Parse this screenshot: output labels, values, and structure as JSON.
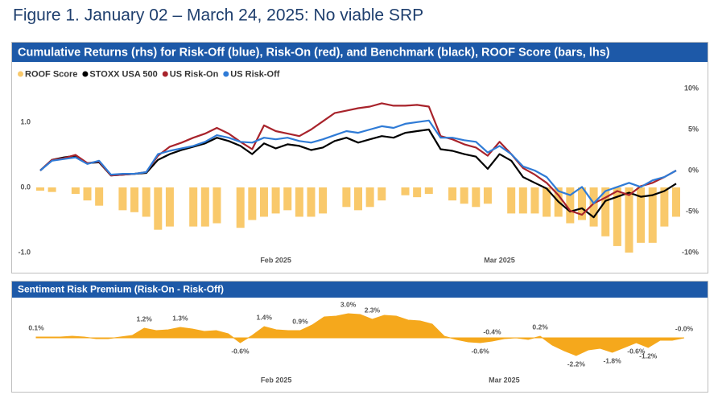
{
  "figure_title": "Figure 1. January 02 – March 24, 2025: No viable SRP",
  "chart_data": [
    {
      "type": "combo",
      "title": "Cumulative Returns (rhs) for Risk-Off (blue), Risk-On (red), and Benchmark (black), ROOF Score (bars, lhs)",
      "categories": [
        null,
        null,
        null,
        null,
        null,
        null,
        null,
        null,
        null,
        null,
        null,
        null,
        null,
        null,
        null,
        null,
        null,
        null,
        null,
        null,
        "Feb 2025",
        null,
        null,
        null,
        null,
        null,
        null,
        null,
        null,
        null,
        null,
        null,
        null,
        null,
        null,
        null,
        null,
        null,
        null,
        "Mar 2025",
        null,
        null,
        null,
        null,
        null,
        null,
        null,
        null,
        null,
        null,
        null,
        null,
        null,
        null,
        null
      ],
      "ylim": [
        -1.1,
        1.6
      ],
      "yticks": [
        {
          "value": 1,
          "label": "1.0"
        },
        {
          "value": 0,
          "label": "0.0"
        },
        {
          "value": -1,
          "label": "-1.0"
        }
      ],
      "y2lim": [
        -10.8,
        10.65
      ],
      "y2ticks": [
        {
          "value": 10,
          "label": "10%"
        },
        {
          "value": 5,
          "label": "5%"
        },
        {
          "value": 0,
          "label": "0%"
        },
        {
          "value": -5,
          "label": "-5%"
        },
        {
          "value": -10,
          "label": "-10%"
        }
      ],
      "legend": "top-left",
      "series": [
        {
          "name": "ROOF Score",
          "type": "bar",
          "color": "#f9c96b",
          "values": [
            -0.05,
            -0.07,
            0,
            -0.1,
            -0.2,
            -0.28,
            0,
            -0.35,
            -0.38,
            -0.45,
            -0.65,
            -0.6,
            0,
            -0.6,
            -0.6,
            -0.55,
            0,
            -0.62,
            -0.5,
            -0.45,
            -0.4,
            -0.35,
            -0.45,
            -0.45,
            -0.4,
            0,
            -0.3,
            -0.35,
            -0.3,
            -0.2,
            0,
            -0.12,
            -0.15,
            -0.1,
            0,
            -0.2,
            -0.25,
            -0.3,
            -0.25,
            0,
            -0.4,
            -0.4,
            -0.4,
            -0.45,
            -0.45,
            -0.55,
            -0.5,
            -0.6,
            -0.75,
            -0.9,
            -1.0,
            -0.85,
            -0.85,
            -0.6,
            -0.45
          ]
        },
        {
          "name": "STOXX USA 500",
          "type": "line",
          "axis": "y2",
          "color": "#000000",
          "values": [
            0,
            1.3,
            1.6,
            1.8,
            0.9,
            1.0,
            -0.6,
            -0.5,
            -0.4,
            -0.3,
            1.3,
            2.0,
            2.5,
            2.9,
            3.3,
            4.0,
            3.6,
            3.0,
            2.0,
            3.3,
            2.7,
            3.2,
            3.0,
            2.5,
            2.8,
            3.6,
            4.0,
            3.4,
            3.8,
            4.2,
            4.0,
            4.6,
            4.8,
            5.0,
            2.6,
            2.4,
            2.0,
            1.7,
            0.2,
            2.0,
            1.2,
            -0.8,
            -1.5,
            -2.2,
            -3.8,
            -5.0,
            -4.6,
            -5.7,
            -3.7,
            -3.2,
            -2.7,
            -3.2,
            -3.0,
            -2.5,
            -1.6
          ]
        },
        {
          "name": "US Risk-On",
          "type": "line",
          "axis": "y2",
          "color": "#a8232b",
          "values": [
            0,
            1.3,
            1.5,
            1.9,
            0.9,
            1.1,
            -0.6,
            -0.5,
            -0.4,
            -0.2,
            1.8,
            2.9,
            3.4,
            4.0,
            4.5,
            5.2,
            4.5,
            3.5,
            2.6,
            5.5,
            4.8,
            4.5,
            4.2,
            5.0,
            6.0,
            7.0,
            7.3,
            7.6,
            7.8,
            8.2,
            7.9,
            7.9,
            8.0,
            7.8,
            4.2,
            3.8,
            3.2,
            2.8,
            1.8,
            3.5,
            2.0,
            0.3,
            -0.5,
            -1.5,
            -3.0,
            -4.9,
            -5.4,
            -4.0,
            -3.3,
            -2.5,
            -3.0,
            -1.9,
            -1.5,
            -0.8,
            0.0
          ]
        },
        {
          "name": "US Risk-Off",
          "type": "line",
          "axis": "y2",
          "color": "#2f7bd6",
          "values": [
            0,
            1.2,
            1.4,
            1.6,
            0.8,
            1.2,
            -0.5,
            -0.4,
            -0.4,
            -0.2,
            2.0,
            2.4,
            2.7,
            3.0,
            3.5,
            4.3,
            4.0,
            3.5,
            3.4,
            4.0,
            3.8,
            4.0,
            3.6,
            3.4,
            3.8,
            4.3,
            4.8,
            4.6,
            5.0,
            5.4,
            5.2,
            5.7,
            5.9,
            6.1,
            4.0,
            4.0,
            3.7,
            3.5,
            2.2,
            3.0,
            2.0,
            0.5,
            0.0,
            -0.8,
            -2.5,
            -3.0,
            -2.0,
            -4.0,
            -2.5,
            -2.0,
            -1.5,
            -2.0,
            -1.2,
            -0.8,
            0.0
          ]
        }
      ]
    },
    {
      "type": "area",
      "title": "Sentiment Risk Premium (Risk-On - Risk-Off)",
      "categories": [
        null,
        null,
        null,
        null,
        null,
        null,
        null,
        null,
        null,
        null,
        null,
        null,
        null,
        null,
        null,
        null,
        null,
        null,
        null,
        null,
        "Feb 2025",
        null,
        null,
        null,
        null,
        null,
        null,
        null,
        null,
        null,
        null,
        null,
        null,
        null,
        null,
        null,
        null,
        null,
        null,
        "Mar 2025",
        null,
        null,
        null,
        null,
        null,
        null,
        null,
        null,
        null,
        null,
        null,
        null,
        null,
        null,
        null
      ],
      "ylim": [
        -4.5,
        4.5
      ],
      "color": "#f5a81c",
      "values": [
        0.1,
        0.1,
        0.1,
        0.2,
        0.1,
        -0.1,
        -0.1,
        0.1,
        0.3,
        1.2,
        0.9,
        1.0,
        1.3,
        1.1,
        0.8,
        0.9,
        0.5,
        -0.6,
        0.3,
        1.4,
        1.0,
        0.9,
        0.9,
        1.6,
        2.6,
        2.7,
        3.0,
        2.9,
        2.3,
        2.8,
        2.7,
        2.2,
        2.1,
        1.7,
        0.2,
        -0.2,
        -0.5,
        -0.6,
        -0.4,
        -0.1,
        0,
        -0.2,
        0.2,
        -0.9,
        -1.6,
        -2.2,
        -1.5,
        -1.3,
        -1.8,
        -1.2,
        -0.6,
        -1.2,
        -0.3,
        -0.3,
        0
      ],
      "value_labels": [
        "0.1%",
        null,
        null,
        null,
        null,
        null,
        null,
        null,
        null,
        "1.2%",
        null,
        null,
        "1.3%",
        null,
        null,
        null,
        null,
        "-0.6%",
        null,
        "1.4%",
        null,
        null,
        "0.9%",
        null,
        null,
        null,
        "3.0%",
        null,
        "2.3%",
        null,
        null,
        null,
        null,
        null,
        null,
        null,
        null,
        "-0.6%",
        "-0.4%",
        null,
        null,
        null,
        "0.2%",
        null,
        null,
        "-2.2%",
        null,
        null,
        "-1.8%",
        null,
        "-0.6%",
        "-1.2%",
        null,
        null,
        "-0.0%"
      ]
    }
  ]
}
